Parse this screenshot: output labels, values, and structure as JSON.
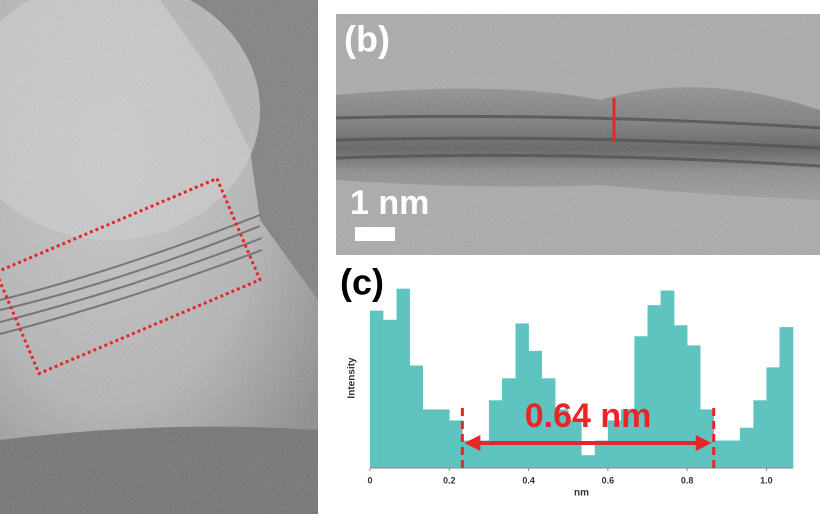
{
  "panels": {
    "b_label": "(b)",
    "scale_bar": "1 nm",
    "c_label": "(c)"
  },
  "chart_data": {
    "type": "histogram",
    "xlabel": "nm",
    "ylabel": "Intensity",
    "color": "#5fc4c0",
    "bins": [
      0,
      0.033,
      0.067,
      0.1,
      0.133,
      0.167,
      0.2,
      0.233,
      0.267,
      0.3,
      0.333,
      0.367,
      0.4,
      0.433,
      0.467,
      0.5,
      0.533,
      0.567,
      0.6,
      0.633,
      0.667,
      0.7,
      0.733,
      0.767,
      0.8,
      0.833,
      0.867,
      0.9,
      0.933,
      0.967,
      1.0,
      1.033,
      1.067
    ],
    "values": [
      86,
      81,
      98,
      56,
      32,
      32,
      26,
      15,
      15,
      37,
      49,
      79,
      64,
      49,
      32,
      26,
      7,
      15,
      26,
      32,
      72,
      89,
      97,
      78,
      67,
      32,
      15,
      15,
      22,
      37,
      55,
      77
    ],
    "xlim": [
      0,
      1.067
    ],
    "ylim": [
      0,
      100
    ],
    "xticks": [
      0,
      0.2,
      0.4,
      0.6,
      0.8,
      {
        "value": 1,
        "label": "1.0"
      }
    ],
    "annotation": {
      "text": "0.64 nm",
      "from": 0.233,
      "to": 0.867,
      "color": "#e8262a"
    }
  }
}
